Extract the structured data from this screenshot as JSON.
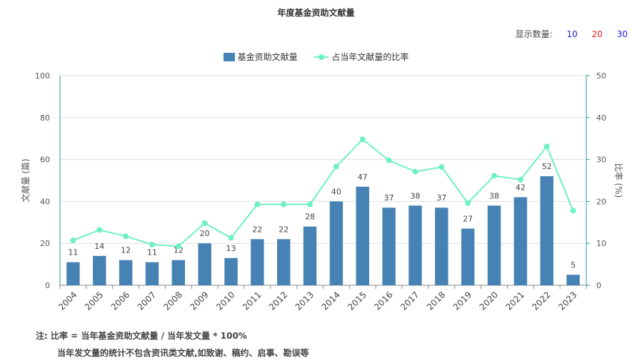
{
  "title": "年度基金资助文献量",
  "count_selector": {
    "label": "显示数量:",
    "options": [
      {
        "label": "10",
        "color": "#1f1fd6"
      },
      {
        "label": "20",
        "color": "#e02020"
      },
      {
        "label": "30",
        "color": "#1f1fd6"
      }
    ]
  },
  "notes": {
    "line1": "注:  比率 = 当年基金资助文献量 / 当年发文量 * 100%",
    "line2": "当年发文量的统计不包含资讯类文献,如致谢、稿约、启事、勘误等"
  },
  "colors": {
    "bar": "#4682b4",
    "line": "#6ff0c5",
    "axis_right": "#2a9aa0"
  },
  "chart_data": {
    "type": "bar",
    "title": "年度基金资助文献量",
    "categories": [
      "2004",
      "2005",
      "2006",
      "2007",
      "2008",
      "2009",
      "2010",
      "2011",
      "2012",
      "2013",
      "2014",
      "2015",
      "2016",
      "2017",
      "2018",
      "2019",
      "2020",
      "2021",
      "2022",
      "2023"
    ],
    "ylabel": "文献量 (篇)",
    "y2label": "比率 (%)",
    "ylim": [
      0,
      100
    ],
    "y2lim": [
      0,
      50
    ],
    "yticks": [
      0,
      20,
      40,
      60,
      80,
      100
    ],
    "y2ticks": [
      0,
      10,
      20,
      30,
      40,
      50
    ],
    "grid": true,
    "legend_position": "top-center",
    "series": [
      {
        "name": "基金资助文献量",
        "type": "bar",
        "axis": "left",
        "values": [
          11,
          14,
          12,
          11,
          12,
          20,
          13,
          22,
          22,
          28,
          40,
          47,
          37,
          38,
          37,
          27,
          38,
          42,
          52,
          5
        ]
      },
      {
        "name": "占当年文献量的比率",
        "type": "line",
        "axis": "right",
        "values": [
          10.7,
          13.2,
          11.7,
          9.7,
          9.3,
          14.8,
          11.3,
          19.3,
          19.3,
          19.3,
          28.3,
          34.8,
          29.8,
          27.1,
          28.2,
          19.6,
          26.1,
          25.2,
          33.1,
          17.8
        ]
      }
    ]
  }
}
